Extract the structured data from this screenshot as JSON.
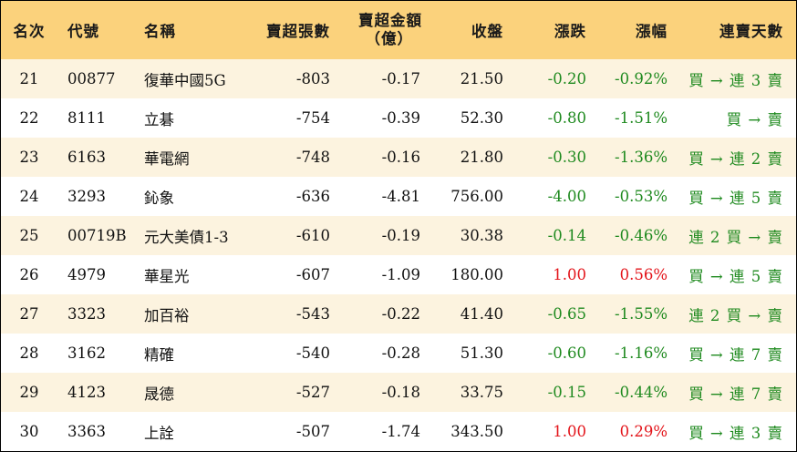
{
  "header": {
    "rank": "名次",
    "code": "代號",
    "name": "名稱",
    "net_sell_lots": "賣超張數",
    "net_sell_amount_line1": "賣超金額",
    "net_sell_amount_line2": "（億）",
    "close": "收盤",
    "change": "漲跌",
    "change_pct": "漲幅",
    "consecutive_days": "連賣天數"
  },
  "colors": {
    "header_bg": "#fbd27c",
    "odd_row_bg": "#fcf3df",
    "even_row_bg": "#ffffff",
    "up": "#e3141a",
    "down": "#1f8a1f"
  },
  "rows": [
    {
      "rank": "21",
      "code": "00877",
      "name": "復華中國5G",
      "lots": "-803",
      "amount": "-0.17",
      "close": "21.50",
      "change": "-0.20",
      "pct": "-0.92%",
      "days": "買 → 連 3 賣",
      "dir": "down"
    },
    {
      "rank": "22",
      "code": "8111",
      "name": "立碁",
      "lots": "-754",
      "amount": "-0.39",
      "close": "52.30",
      "change": "-0.80",
      "pct": "-1.51%",
      "days": "買 → 賣",
      "dir": "down"
    },
    {
      "rank": "23",
      "code": "6163",
      "name": "華電網",
      "lots": "-748",
      "amount": "-0.16",
      "close": "21.80",
      "change": "-0.30",
      "pct": "-1.36%",
      "days": "買 → 連 2 賣",
      "dir": "down"
    },
    {
      "rank": "24",
      "code": "3293",
      "name": "鈊象",
      "lots": "-636",
      "amount": "-4.81",
      "close": "756.00",
      "change": "-4.00",
      "pct": "-0.53%",
      "days": "買 → 連 5 賣",
      "dir": "down"
    },
    {
      "rank": "25",
      "code": "00719B",
      "name": "元大美債1-3",
      "lots": "-610",
      "amount": "-0.19",
      "close": "30.38",
      "change": "-0.14",
      "pct": "-0.46%",
      "days": "連 2 買 → 賣",
      "dir": "down"
    },
    {
      "rank": "26",
      "code": "4979",
      "name": "華星光",
      "lots": "-607",
      "amount": "-1.09",
      "close": "180.00",
      "change": "1.00",
      "pct": "0.56%",
      "days": "買 → 連 5 賣",
      "dir": "up"
    },
    {
      "rank": "27",
      "code": "3323",
      "name": "加百裕",
      "lots": "-543",
      "amount": "-0.22",
      "close": "41.40",
      "change": "-0.65",
      "pct": "-1.55%",
      "days": "連 2 買 → 賣",
      "dir": "down"
    },
    {
      "rank": "28",
      "code": "3162",
      "name": "精確",
      "lots": "-540",
      "amount": "-0.28",
      "close": "51.30",
      "change": "-0.60",
      "pct": "-1.16%",
      "days": "買 → 連 7 賣",
      "dir": "down"
    },
    {
      "rank": "29",
      "code": "4123",
      "name": "晟德",
      "lots": "-527",
      "amount": "-0.18",
      "close": "33.75",
      "change": "-0.15",
      "pct": "-0.44%",
      "days": "買 → 連 7 賣",
      "dir": "down"
    },
    {
      "rank": "30",
      "code": "3363",
      "name": "上詮",
      "lots": "-507",
      "amount": "-1.74",
      "close": "343.50",
      "change": "1.00",
      "pct": "0.29%",
      "days": "買 → 連 3 賣",
      "dir": "up"
    }
  ]
}
